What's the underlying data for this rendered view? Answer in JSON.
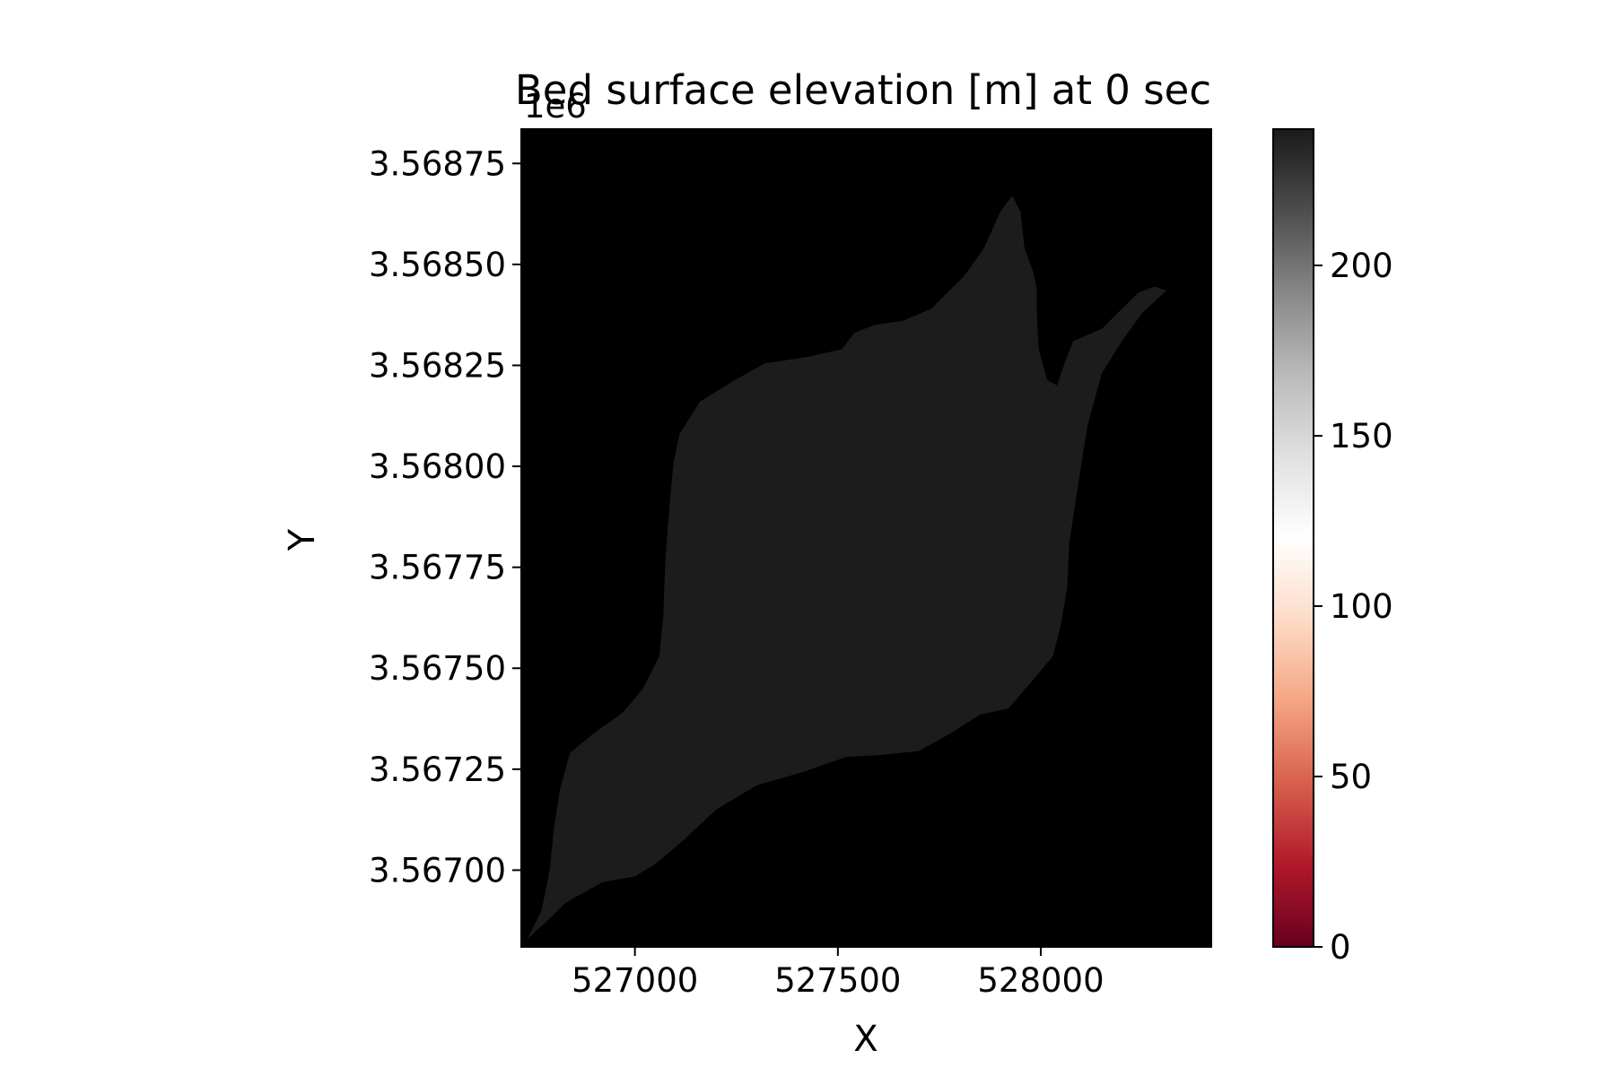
{
  "chart_data": {
    "type": "heatmap",
    "title": "Bed surface elevation [m] at 0 sec",
    "xlabel": "X",
    "ylabel": "Y",
    "y_offset_label": "1e6",
    "xlim": [
      526720,
      528420
    ],
    "ylim": [
      3566760,
      3568785
    ],
    "x_ticks": [
      {
        "value": 527000,
        "label": "527000"
      },
      {
        "value": 527500,
        "label": "527500"
      },
      {
        "value": 528000,
        "label": "528000"
      }
    ],
    "y_ticks": [
      {
        "value": 3566950,
        "label": "3.56700"
      },
      {
        "value": 3567200,
        "label": "3.56725"
      },
      {
        "value": 3567450,
        "label": "3.56750"
      },
      {
        "value": 3567700,
        "label": "3.56775"
      },
      {
        "value": 3567950,
        "label": "3.56800"
      },
      {
        "value": 3568200,
        "label": "3.56825"
      },
      {
        "value": 3568450,
        "label": "3.56850"
      },
      {
        "value": 3568700,
        "label": "3.56875"
      }
    ],
    "colorbar": {
      "colormap": "RdGy",
      "range": [
        0,
        240
      ],
      "ticks": [
        {
          "value": 0,
          "label": "0"
        },
        {
          "value": 50,
          "label": "50"
        },
        {
          "value": 100,
          "label": "100"
        },
        {
          "value": 150,
          "label": "150"
        },
        {
          "value": 200,
          "label": "200"
        }
      ],
      "stops": [
        {
          "t": 0.0,
          "color": "#67001f"
        },
        {
          "t": 0.1,
          "color": "#b2182b"
        },
        {
          "t": 0.2,
          "color": "#d6604d"
        },
        {
          "t": 0.3,
          "color": "#f4a582"
        },
        {
          "t": 0.4,
          "color": "#fddbc7"
        },
        {
          "t": 0.5,
          "color": "#ffffff"
        },
        {
          "t": 0.6,
          "color": "#e0e0e0"
        },
        {
          "t": 0.7,
          "color": "#bababa"
        },
        {
          "t": 0.8,
          "color": "#878787"
        },
        {
          "t": 0.9,
          "color": "#4d4d4d"
        },
        {
          "t": 1.0,
          "color": "#1a1a1a"
        }
      ]
    },
    "background_color": "#000000",
    "region_color": "#1c1c1c",
    "region_outline": [
      [
        526735,
        3566780
      ],
      [
        526790,
        3566830
      ],
      [
        526830,
        3566870
      ],
      [
        526920,
        3566920
      ],
      [
        527000,
        3566935
      ],
      [
        527050,
        3566965
      ],
      [
        527115,
        3567020
      ],
      [
        527200,
        3567100
      ],
      [
        527300,
        3567160
      ],
      [
        527420,
        3567195
      ],
      [
        527520,
        3567230
      ],
      [
        527600,
        3567235
      ],
      [
        527700,
        3567245
      ],
      [
        527780,
        3567290
      ],
      [
        527850,
        3567335
      ],
      [
        527920,
        3567350
      ],
      [
        527980,
        3567420
      ],
      [
        528030,
        3567480
      ],
      [
        528050,
        3567560
      ],
      [
        528065,
        3567650
      ],
      [
        528070,
        3567760
      ],
      [
        528090,
        3567890
      ],
      [
        528115,
        3568050
      ],
      [
        528150,
        3568180
      ],
      [
        528200,
        3568260
      ],
      [
        528250,
        3568330
      ],
      [
        528310,
        3568385
      ],
      [
        528280,
        3568395
      ],
      [
        528240,
        3568380
      ],
      [
        528200,
        3568340
      ],
      [
        528150,
        3568290
      ],
      [
        528080,
        3568260
      ],
      [
        528060,
        3568210
      ],
      [
        528040,
        3568150
      ],
      [
        528015,
        3568165
      ],
      [
        527995,
        3568240
      ],
      [
        527990,
        3568330
      ],
      [
        527990,
        3568390
      ],
      [
        527980,
        3568435
      ],
      [
        527960,
        3568490
      ],
      [
        527950,
        3568580
      ],
      [
        527930,
        3568620
      ],
      [
        527900,
        3568580
      ],
      [
        527860,
        3568490
      ],
      [
        527810,
        3568420
      ],
      [
        527730,
        3568340
      ],
      [
        527660,
        3568310
      ],
      [
        527590,
        3568300
      ],
      [
        527540,
        3568280
      ],
      [
        527510,
        3568240
      ],
      [
        527420,
        3568220
      ],
      [
        527320,
        3568205
      ],
      [
        527240,
        3568160
      ],
      [
        527160,
        3568110
      ],
      [
        527110,
        3568030
      ],
      [
        527095,
        3567960
      ],
      [
        527085,
        3567850
      ],
      [
        527075,
        3567720
      ],
      [
        527070,
        3567580
      ],
      [
        527060,
        3567480
      ],
      [
        527020,
        3567400
      ],
      [
        526970,
        3567340
      ],
      [
        526900,
        3567290
      ],
      [
        526840,
        3567240
      ],
      [
        526815,
        3567150
      ],
      [
        526800,
        3567050
      ],
      [
        526790,
        3566950
      ],
      [
        526770,
        3566850
      ]
    ]
  }
}
